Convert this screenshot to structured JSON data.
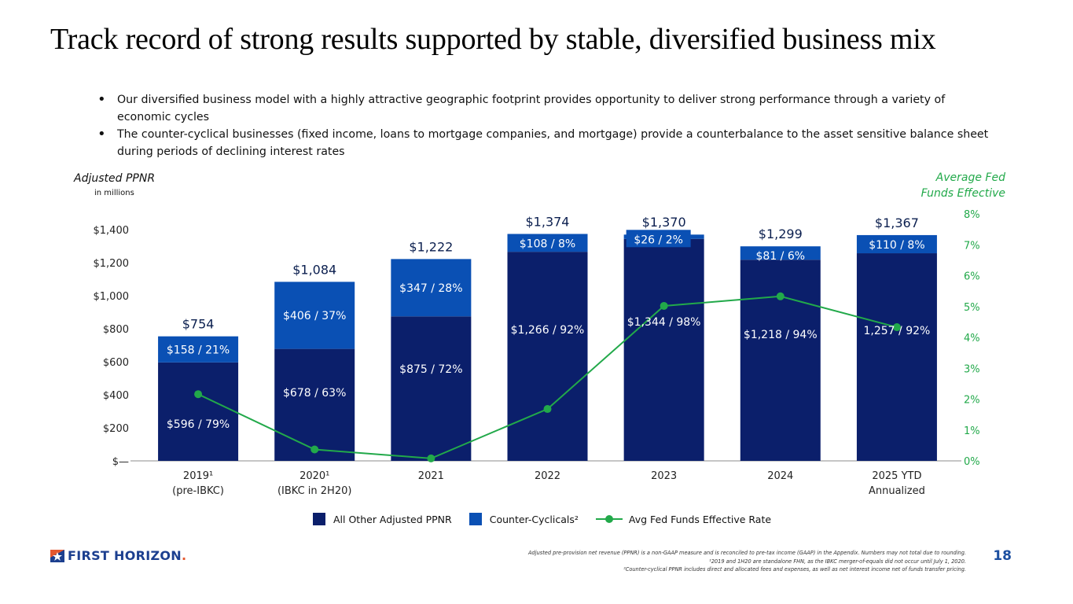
{
  "title": "Track record of strong results supported by stable, diversified business mix",
  "bullets": [
    "Our diversified business model with a highly attractive geographic footprint provides opportunity to deliver strong performance through a variety of economic cycles",
    "The counter-cyclical businesses (fixed income, loans to mortgage companies, and mortgage) provide a counterbalance to the asset sensitive balance sheet during periods of declining interest rates"
  ],
  "left_axis": {
    "title": "Adjusted PPNR",
    "subtitle": "in millions"
  },
  "right_axis": {
    "title_line1": "Average Fed",
    "title_line2": "Funds Effective"
  },
  "colors": {
    "other": "#0b1f6b",
    "counter": "#0a50b4",
    "fed": "#22a94a",
    "total_label": "#0b1f4f"
  },
  "chart_data": {
    "type": "bar",
    "stacked": true,
    "categories": [
      "2019¹ (pre-IBKC)",
      "2020¹ (IBKC in 2H20)",
      "2021",
      "2022",
      "2023",
      "2024",
      "2025 YTD Annualized"
    ],
    "category_lines": [
      [
        "2019¹",
        "(pre-IBKC)"
      ],
      [
        "2020¹",
        "(IBKC in 2H20)"
      ],
      [
        "2021"
      ],
      [
        "2022"
      ],
      [
        "2023"
      ],
      [
        "2024"
      ],
      [
        "2025 YTD",
        "Annualized"
      ]
    ],
    "series": [
      {
        "name": "All Other Adjusted PPNR",
        "axis": "left",
        "values": [
          596,
          678,
          875,
          1266,
          1344,
          1218,
          1257
        ],
        "labels": [
          "$596 / 79%",
          "$678 / 63%",
          "$875 / 72%",
          "$1,266 / 92%",
          "$1,344 / 98%",
          "$1,218 / 94%",
          "1,257 / 92%"
        ]
      },
      {
        "name": "Counter-Cyclicals²",
        "axis": "left",
        "values": [
          158,
          406,
          347,
          108,
          26,
          81,
          110
        ],
        "labels": [
          "$158 / 21%",
          "$406 / 37%",
          "$347 / 28%",
          "$108 / 8%",
          "$26 / 2%",
          "$81 / 6%",
          "$110 / 8%"
        ]
      },
      {
        "name": "Avg Fed Funds Effective Rate",
        "type": "line",
        "axis": "right",
        "values": [
          2.16,
          0.37,
          0.08,
          1.68,
          5.02,
          5.33,
          4.33
        ]
      }
    ],
    "totals": [
      754,
      1084,
      1222,
      1374,
      1370,
      1299,
      1367
    ],
    "total_labels": [
      "$754",
      "$1,084",
      "$1,222",
      "$1,374",
      "$1,370",
      "$1,299",
      "$1,367"
    ],
    "ylim": [
      0,
      1400
    ],
    "yticks": [
      "$—",
      "$200",
      "$400",
      "$600",
      "$800",
      "$1,000",
      "$1,200",
      "$1,400"
    ],
    "y2lim": [
      0,
      8
    ],
    "y2ticks": [
      "0%",
      "1%",
      "2%",
      "3%",
      "4%",
      "5%",
      "6%",
      "7%",
      "8%"
    ],
    "ylabel": "Adjusted PPNR (in millions)",
    "y2label": "Average Fed Funds Effective",
    "grid": false,
    "legend_position": "bottom"
  },
  "legend": [
    "All Other Adjusted PPNR",
    "Counter-Cyclicals²",
    "Avg Fed Funds Effective Rate"
  ],
  "logo": {
    "text": "FIRST HORIZON",
    "dot": "."
  },
  "footnotes": [
    "Adjusted pre-provision net revenue (PPNR) is a non-GAAP measure and is reconciled to pre-tax income (GAAP) in the Appendix. Numbers may not total due to rounding.",
    "¹2019 and 1H20 are standalone FHN, as the IBKC merger-of-equals did not occur until July 1, 2020.",
    "²Counter-cyclical PPNR includes direct and allocated fees and expenses, as well as net interest income net of funds transfer pricing."
  ],
  "page_number": "18"
}
